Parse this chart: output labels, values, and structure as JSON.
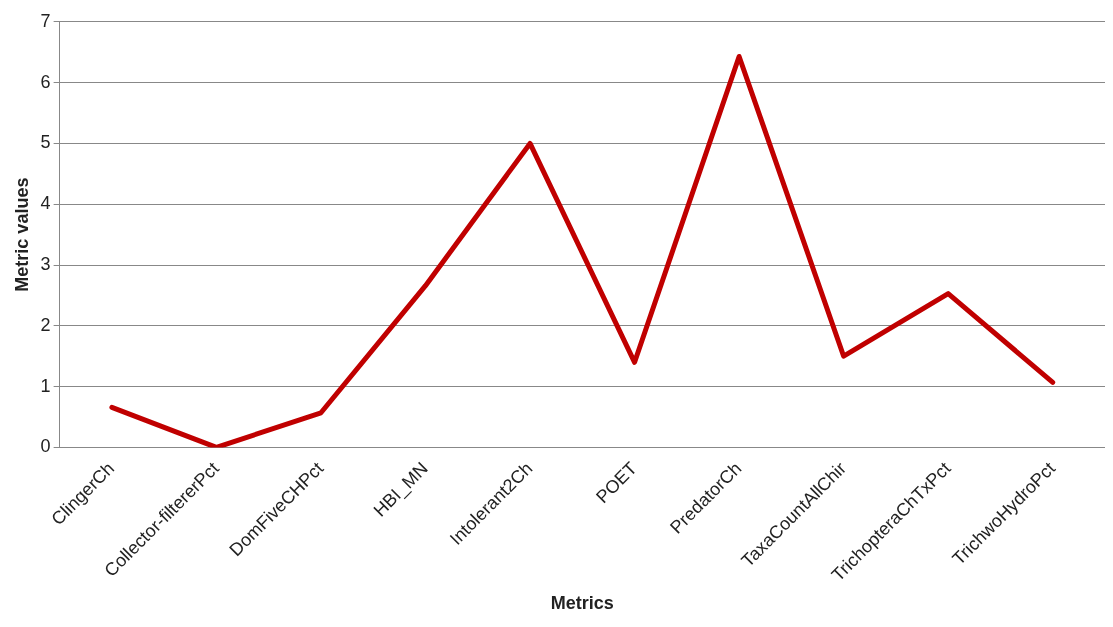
{
  "chart_data": {
    "type": "line",
    "xlabel": "Metrics",
    "ylabel": "Metric values",
    "categories": [
      "ClingerCh",
      "Collector-filtererPct",
      "DomFiveCHPct",
      "HBI_MN",
      "Intolerant2Ch",
      "POET",
      "PredatorCh",
      "TaxaCountAllChir",
      "TrichopteraChTxPct",
      "TrichwoHydroPct"
    ],
    "series": [
      {
        "color": "#c00000",
        "values": [
          0.66,
          0,
          0.57,
          2.66,
          5.0,
          1.4,
          6.43,
          1.5,
          2.53,
          1.07
        ]
      }
    ],
    "ylim": [
      0,
      7
    ],
    "yticks": [
      0,
      1,
      2,
      3,
      4,
      5,
      6,
      7
    ],
    "grid": "y",
    "legend": false,
    "marker": "none",
    "line_style": "solid"
  }
}
